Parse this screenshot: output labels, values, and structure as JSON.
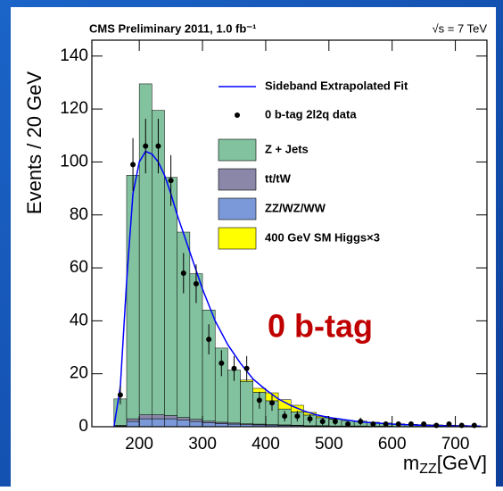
{
  "chart_data": {
    "type": "histogram",
    "title": "CMS Preliminary 2011, 1.0 fb⁻¹",
    "subtitle": "√s = 7 TeV",
    "annotation": "0 b-tag",
    "y_label": "Events / 20 GeV",
    "x_label": "m",
    "x_label_sub": "ZZ",
    "x_label_unit": "[GeV]",
    "bins": [
      160,
      180,
      200,
      220,
      240,
      260,
      280,
      300,
      320,
      340,
      360,
      380,
      400,
      420,
      440,
      460,
      480,
      500,
      520,
      540,
      560,
      580,
      600,
      620,
      640,
      660,
      680,
      700,
      720,
      740
    ],
    "series": [
      {
        "name": "ZZ/WZ/WW",
        "color": "#7b99d8",
        "values": [
          0.3,
          2,
          3,
          3,
          3,
          2.5,
          2,
          1.5,
          1.2,
          1,
          0.8,
          0.7,
          0.6,
          0.5,
          0.4,
          0.3,
          0.3,
          0.2,
          0.2,
          0.2,
          0.1,
          0.1,
          0.1,
          0.1,
          0.1,
          0.1,
          0.1,
          0.1,
          0.1
        ]
      },
      {
        "name": "tt/tW",
        "color": "#8a87a8",
        "values": [
          0.2,
          1,
          1.5,
          1.5,
          1.2,
          1,
          0.8,
          0.6,
          0.5,
          0.4,
          0.3,
          0.3,
          0.2,
          0.2,
          0.2,
          0.1,
          0.1,
          0.1,
          0.1,
          0.1,
          0.1,
          0.1,
          0,
          0,
          0,
          0,
          0,
          0,
          0
        ]
      },
      {
        "name": "Z + Jets",
        "color": "#82c29e",
        "values": [
          10,
          92,
          125,
          115,
          90,
          70,
          55,
          42,
          28,
          20,
          16,
          12,
          9,
          6,
          5,
          4,
          3,
          2.5,
          2,
          1.8,
          1.5,
          1.2,
          1,
          0.8,
          0.7,
          0.6,
          0.5,
          0.4,
          0.3
        ]
      },
      {
        "name": "400 GeV SM Higgs×3",
        "color": "#ffff00",
        "values": [
          0,
          0,
          0,
          0,
          0,
          0,
          0,
          0,
          0,
          0,
          0.5,
          1.5,
          3,
          3.5,
          2.5,
          1,
          0.5,
          0.2,
          0,
          0,
          0,
          0,
          0,
          0,
          0,
          0,
          0,
          0,
          0
        ]
      }
    ],
    "data": {
      "name": "0 b-tag 2l2q data",
      "color": "#000000",
      "x": [
        170,
        190,
        210,
        230,
        250,
        270,
        290,
        310,
        330,
        350,
        370,
        390,
        410,
        430,
        450,
        470,
        490,
        510,
        530,
        550,
        570,
        590,
        610,
        630,
        650,
        670,
        690,
        710,
        730
      ],
      "values": [
        12,
        99,
        106,
        106,
        93,
        58,
        54,
        33,
        24,
        22,
        22,
        10,
        9,
        4,
        4,
        3,
        2,
        2,
        1,
        2,
        1,
        1,
        1,
        1,
        1,
        0.5,
        1,
        0.5,
        0.5
      ],
      "errors": [
        3.5,
        10,
        10.3,
        10.3,
        9.6,
        7.6,
        7.3,
        5.7,
        4.9,
        4.7,
        4.7,
        3.2,
        3,
        2,
        2,
        1.7,
        1.4,
        1.4,
        1,
        1.4,
        1,
        1,
        1,
        1,
        1,
        0.7,
        1,
        0.7,
        0.7
      ]
    },
    "fit": {
      "name": "Sideband Extrapolated Fit",
      "color": "#0000ff",
      "x": [
        160,
        170,
        180,
        190,
        200,
        210,
        220,
        230,
        240,
        250,
        260,
        280,
        300,
        320,
        340,
        360,
        380,
        400,
        420,
        440,
        460,
        480,
        500,
        550,
        600,
        650,
        700,
        740
      ],
      "values": [
        0,
        15,
        55,
        88,
        100,
        104,
        103,
        100,
        95,
        88,
        80,
        66,
        52,
        40,
        31,
        24,
        18,
        14,
        10.5,
        8,
        6,
        4.5,
        3.5,
        1.8,
        1,
        0.5,
        0.3,
        0.2
      ]
    },
    "annotation_color": "#c00000",
    "xlim": [
      125,
      750
    ],
    "xticks": [
      200,
      300,
      400,
      500,
      600,
      700
    ],
    "ylim": [
      0,
      146
    ],
    "yticks": [
      0,
      20,
      40,
      60,
      80,
      100,
      120,
      140
    ]
  }
}
